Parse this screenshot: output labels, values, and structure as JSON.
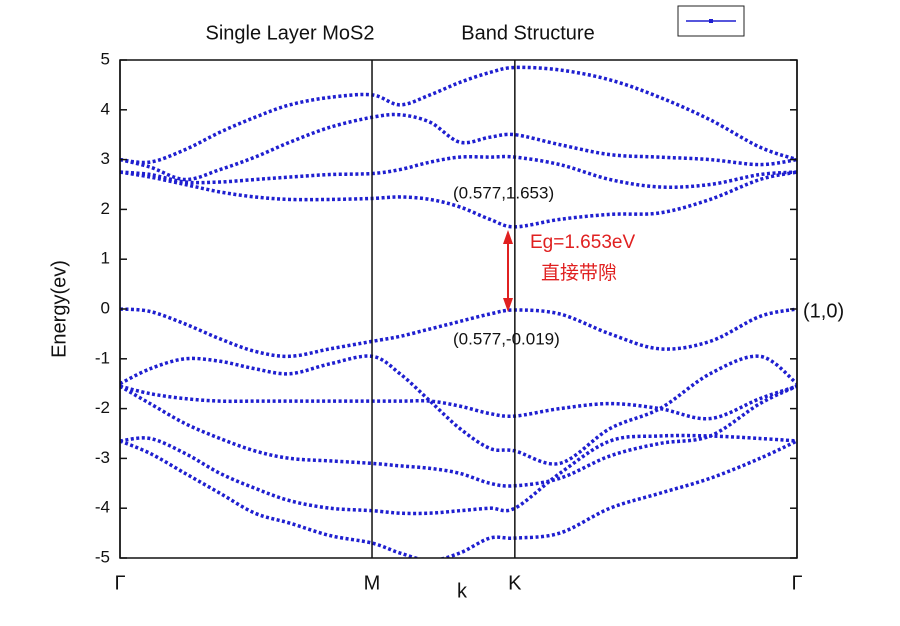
{
  "chart_data": {
    "type": "line",
    "title": "Single Layer MoS2",
    "subtitle": "Band Structure",
    "x_label": "k",
    "y_label": "Energy(ev)",
    "x": [
      0,
      0.069,
      0.149,
      0.229,
      0.309,
      0.389,
      0.481,
      0.577,
      0.641,
      0.71,
      0.778,
      0.847,
      0.904,
      1.007,
      1.122,
      1.236,
      1.351,
      1.465,
      1.55
    ],
    "series": [
      {
        "color": "#1f1fd0",
        "values": [
          2.75,
          2.65,
          2.5,
          2.35,
          2.25,
          2.2,
          2.2,
          2.22,
          2.25,
          2.2,
          2.05,
          1.8,
          1.65,
          1.8,
          1.9,
          1.93,
          2.2,
          2.6,
          2.75
        ]
      },
      {
        "color": "#1f1fd0",
        "values": [
          2.75,
          2.7,
          2.55,
          2.55,
          2.6,
          2.65,
          2.7,
          2.72,
          2.8,
          2.95,
          3.05,
          3.05,
          3.05,
          2.9,
          2.6,
          2.45,
          2.5,
          2.7,
          2.75
        ]
      },
      {
        "color": "#1f1fd0",
        "values": [
          3.0,
          2.85,
          2.6,
          2.8,
          3.05,
          3.35,
          3.65,
          3.85,
          3.9,
          3.75,
          3.35,
          3.45,
          3.5,
          3.3,
          3.1,
          3.05,
          3.0,
          2.9,
          3.0
        ]
      },
      {
        "color": "#1f1fd0",
        "values": [
          3.0,
          2.95,
          3.2,
          3.55,
          3.85,
          4.1,
          4.25,
          4.3,
          4.1,
          4.3,
          4.55,
          4.75,
          4.85,
          4.8,
          4.6,
          4.25,
          3.8,
          3.25,
          3.0
        ]
      },
      {
        "color": "#1f1fd0",
        "values": [
          0,
          -0.05,
          -0.3,
          -0.6,
          -0.85,
          -0.95,
          -0.8,
          -0.65,
          -0.55,
          -0.4,
          -0.25,
          -0.1,
          -0.02,
          -0.1,
          -0.5,
          -0.8,
          -0.65,
          -0.15,
          0
        ]
      },
      {
        "color": "#1f1fd0",
        "values": [
          -1.5,
          -1.2,
          -1.0,
          -1.05,
          -1.2,
          -1.3,
          -1.1,
          -0.95,
          -1.3,
          -1.85,
          -2.4,
          -2.8,
          -2.85,
          -3.1,
          -2.4,
          -2.0,
          -1.3,
          -0.95,
          -1.5
        ]
      },
      {
        "color": "#1f1fd0",
        "values": [
          -1.55,
          -1.7,
          -1.8,
          -1.85,
          -1.85,
          -1.85,
          -1.85,
          -1.85,
          -1.85,
          -1.85,
          -1.95,
          -2.1,
          -2.15,
          -2.0,
          -1.9,
          -2.0,
          -2.2,
          -1.8,
          -1.55
        ]
      },
      {
        "color": "#1f1fd0",
        "values": [
          -1.55,
          -1.9,
          -2.3,
          -2.6,
          -2.85,
          -3.0,
          -3.05,
          -3.1,
          -3.15,
          -3.2,
          -3.3,
          -3.5,
          -3.55,
          -3.4,
          -2.95,
          -2.7,
          -2.55,
          -1.9,
          -1.55
        ]
      },
      {
        "color": "#1f1fd0",
        "values": [
          -2.65,
          -2.6,
          -2.9,
          -3.3,
          -3.6,
          -3.85,
          -4.0,
          -4.05,
          -4.1,
          -4.1,
          -4.05,
          -4.0,
          -4.0,
          -3.3,
          -2.65,
          -2.55,
          -2.55,
          -2.6,
          -2.65
        ]
      },
      {
        "color": "#1f1fd0",
        "values": [
          -2.65,
          -2.9,
          -3.3,
          -3.7,
          -4.1,
          -4.3,
          -4.55,
          -4.7,
          -4.9,
          -5.05,
          -4.9,
          -4.6,
          -4.6,
          -4.5,
          -4.0,
          -3.7,
          -3.4,
          -3.0,
          -2.65
        ]
      }
    ],
    "xlim": [
      0,
      1.55
    ],
    "xticks": [
      {
        "value": 0,
        "label": "Γ"
      },
      {
        "value": 0.577,
        "label": "M"
      },
      {
        "value": 0.904,
        "label": "K"
      },
      {
        "value": 1.55,
        "label": "Γ"
      }
    ],
    "ylim": [
      -5,
      5
    ],
    "yticks": [
      -5,
      -4,
      -3,
      -2,
      -1,
      0,
      1,
      2,
      3,
      4,
      5
    ],
    "annotations": [
      "(0.577,1.653)",
      "(0.577,-0.019)",
      "Eg=1.653eV",
      "直接带隙",
      "(1,0)"
    ]
  }
}
